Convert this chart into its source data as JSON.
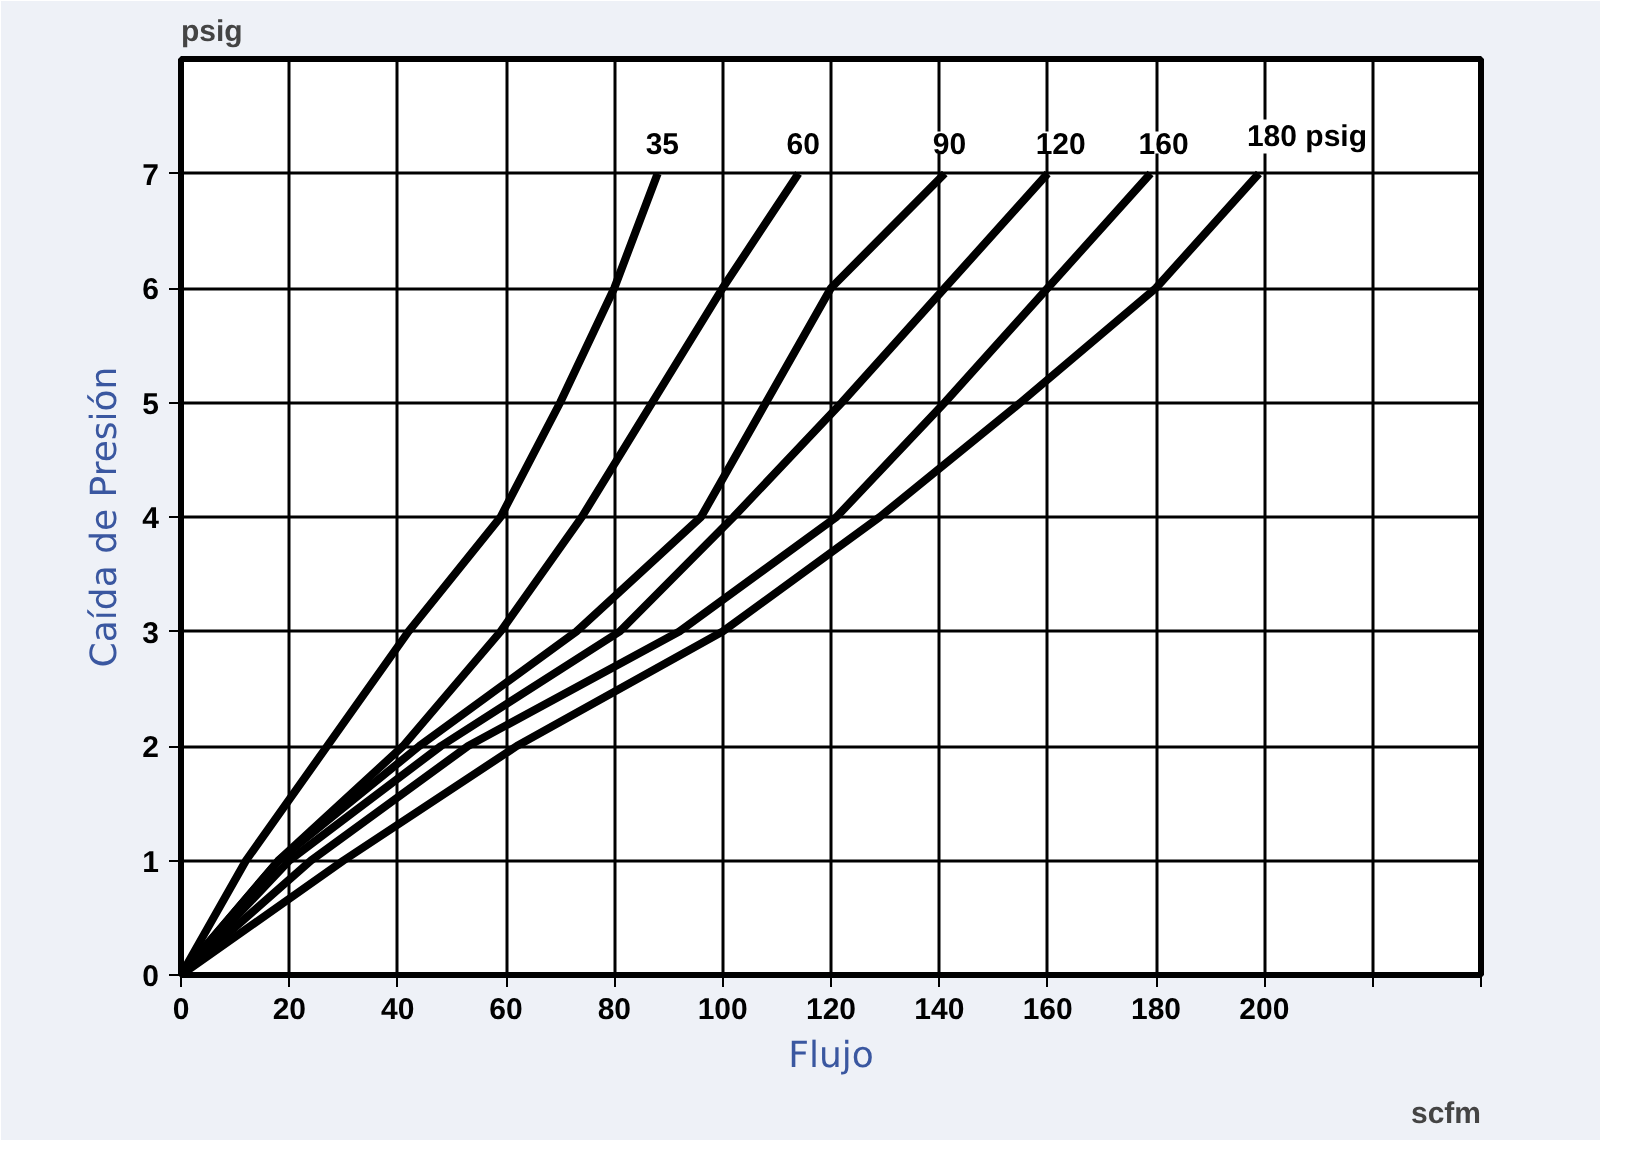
{
  "chart_data": {
    "type": "line",
    "xlabel": "Flujo",
    "ylabel": "Caída de Presión",
    "annotations": [
      "psig",
      "scfm"
    ],
    "xlim": [
      0,
      240
    ],
    "ylim": [
      0,
      8
    ],
    "xticks": [
      0,
      20,
      40,
      60,
      80,
      100,
      120,
      140,
      160,
      180,
      200,
      {
        "value": 220,
        "label": null
      },
      {
        "value": 240,
        "label": null
      }
    ],
    "yticks": [
      0,
      1,
      2,
      3,
      4,
      5,
      6,
      7
    ],
    "grid": true,
    "marker": "none",
    "line_style": "solid",
    "series": [
      {
        "name": "35",
        "color": "#000000",
        "x": [
          0,
          12,
          27,
          42,
          59,
          70,
          80,
          88
        ],
        "values": [
          0,
          1,
          2,
          3,
          4,
          5,
          6,
          7
        ]
      },
      {
        "name": "60",
        "color": "#000000",
        "x": [
          0,
          18,
          41,
          59,
          74,
          87,
          100,
          114
        ],
        "values": [
          0,
          1,
          2,
          3,
          4,
          5,
          6,
          7
        ]
      },
      {
        "name": "90",
        "color": "#000000",
        "x": [
          0,
          18,
          44,
          73,
          96,
          108,
          120,
          141
        ],
        "values": [
          0,
          1,
          2,
          3,
          4,
          5,
          6,
          7
        ]
      },
      {
        "name": "120",
        "color": "#000000",
        "x": [
          0,
          20,
          48,
          81,
          102,
          122,
          141,
          160
        ],
        "values": [
          0,
          1,
          2,
          3,
          4,
          5,
          6,
          7
        ]
      },
      {
        "name": "160",
        "color": "#000000",
        "x": [
          0,
          24,
          53,
          92,
          121,
          141,
          160,
          179
        ],
        "values": [
          0,
          1,
          2,
          3,
          4,
          5,
          6,
          7
        ]
      },
      {
        "name": "180 psig",
        "color": "#000000",
        "x": [
          0,
          30,
          62,
          100,
          129,
          155,
          180,
          199
        ],
        "values": [
          0,
          1,
          2,
          3,
          4,
          5,
          6,
          7
        ]
      }
    ]
  }
}
